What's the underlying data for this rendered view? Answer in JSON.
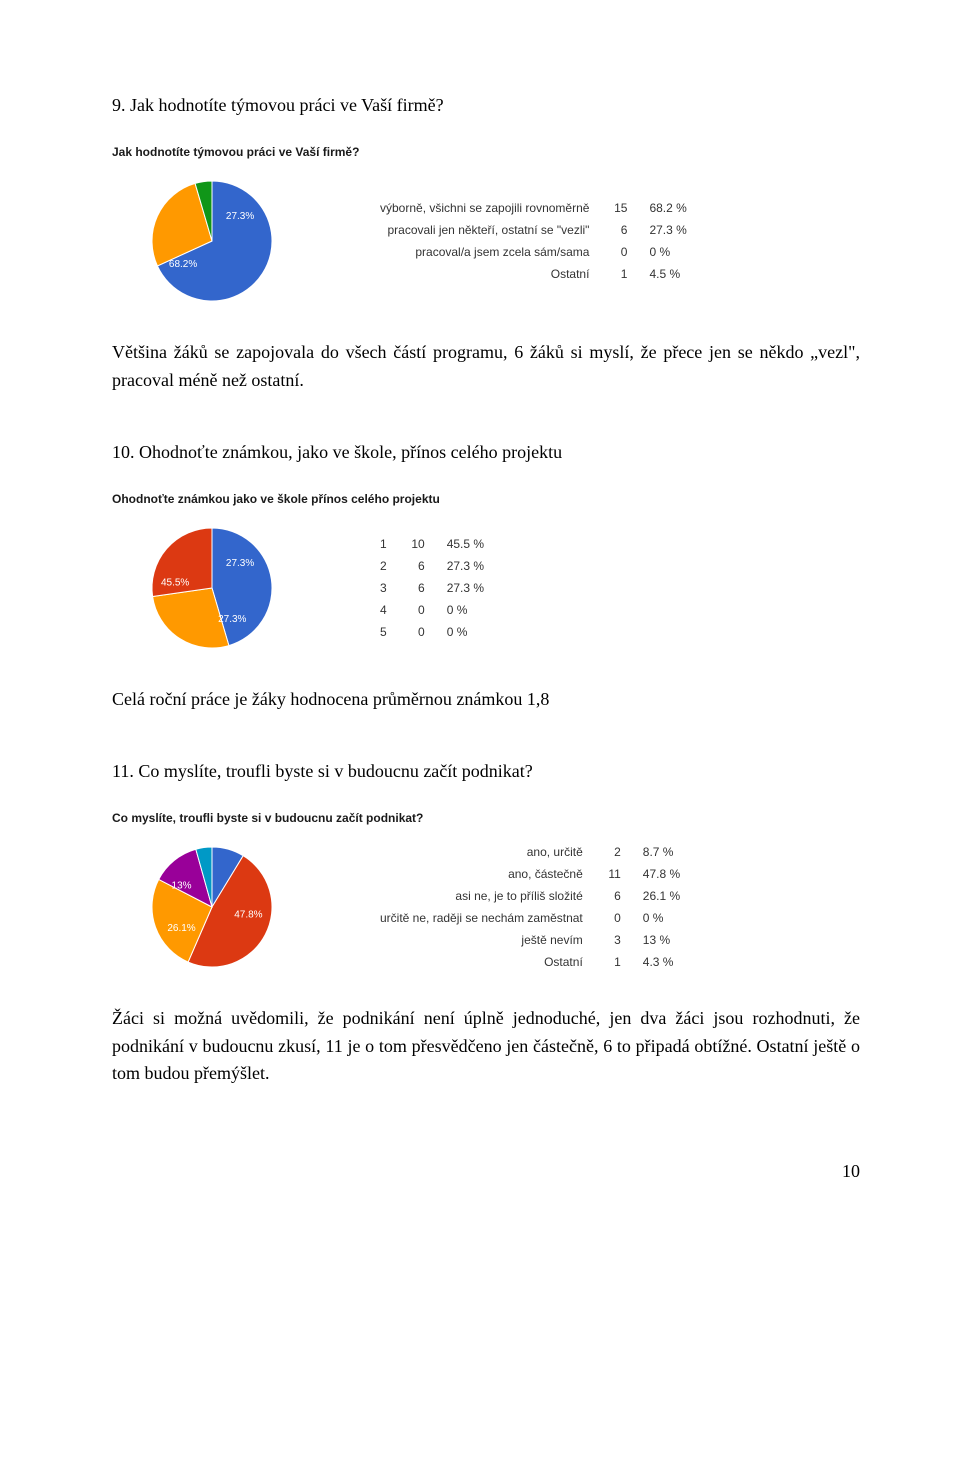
{
  "q9": {
    "heading": "9. Jak hodnotíte týmovou práci ve Vaší firmě?",
    "chart_title": "Jak hodnotíte týmovou práci ve Vaší firmě?",
    "items": [
      {
        "label": "výborně, všichni se zapojili rovnoměrně",
        "count": 15,
        "pct": "68.2 %",
        "color": "#3366cc"
      },
      {
        "label": "pracovali jen někteří, ostatní se \"vezli\"",
        "count": 6,
        "pct": "27.3 %",
        "color": "#ff9900"
      },
      {
        "label": "pracoval/a jsem zcela sám/sama",
        "count": 0,
        "pct": "0 %",
        "color": "#dc3912"
      },
      {
        "label": "Ostatní",
        "count": 1,
        "pct": "4.5 %",
        "color": "#109618"
      }
    ],
    "slice_labels": [
      {
        "text": "27.3%",
        "angle": 49
      },
      {
        "text": "68.2%",
        "angle": 231
      }
    ],
    "para": "Většina žáků se zapojovala do všech částí programu, 6 žáků si myslí, že přece jen se někdo „vezl\", pracoval méně než ostatní."
  },
  "q10": {
    "heading": "10. Ohodnoťte známkou, jako ve škole, přínos celého projektu",
    "chart_title": "Ohodnoťte známkou jako ve škole přínos celého projektu",
    "items": [
      {
        "label": "1",
        "count": 10,
        "pct": "45.5 %",
        "color": "#3366cc"
      },
      {
        "label": "2",
        "count": 6,
        "pct": "27.3 %",
        "color": "#ff9900"
      },
      {
        "label": "3",
        "count": 6,
        "pct": "27.3 %",
        "color": "#dc3912"
      },
      {
        "label": "4",
        "count": 0,
        "pct": "0 %",
        "color": "#109618"
      },
      {
        "label": "5",
        "count": 0,
        "pct": "0 %",
        "color": "#990099"
      }
    ],
    "slice_labels": [
      {
        "text": "27.3%",
        "angle": 49
      },
      {
        "text": "27.3%",
        "angle": 147
      },
      {
        "text": "45.5%",
        "angle": 278
      }
    ],
    "para": "Celá roční práce je žáky hodnocena průměrnou známkou 1,8"
  },
  "q11": {
    "heading": "11. Co myslíte, troufli byste si v budoucnu začít podnikat?",
    "chart_title": "Co myslíte, troufli byste si v budoucnu začít podnikat?",
    "items": [
      {
        "label": "ano, určitě",
        "count": 2,
        "pct": "8.7 %",
        "color": "#3366cc"
      },
      {
        "label": "ano, částečně",
        "count": 11,
        "pct": "47.8 %",
        "color": "#dc3912"
      },
      {
        "label": "asi ne, je to příliš složité",
        "count": 6,
        "pct": "26.1 %",
        "color": "#ff9900"
      },
      {
        "label": "určitě ne, raději se nechám zaměstnat",
        "count": 0,
        "pct": "0 %",
        "color": "#109618"
      },
      {
        "label": "ještě nevím",
        "count": 3,
        "pct": "13 %",
        "color": "#990099"
      },
      {
        "label": "Ostatní",
        "count": 1,
        "pct": "4.3 %",
        "color": "#0099c6"
      }
    ],
    "slice_labels": [
      {
        "text": "47.8%",
        "angle": 102
      },
      {
        "text": "26.1%",
        "angle": 235
      },
      {
        "text": "13%",
        "angle": 305
      }
    ],
    "para": "Žáci si možná uvědomili, že podnikání není úplně jednoduché, jen dva žáci jsou rozhodnuti, že podnikání v budoucnu zkusí, 11 je o tom přesvědčeno jen částečně, 6 to připadá obtížné. Ostatní ještě o tom budou přemýšlet."
  },
  "page_number": "10"
}
